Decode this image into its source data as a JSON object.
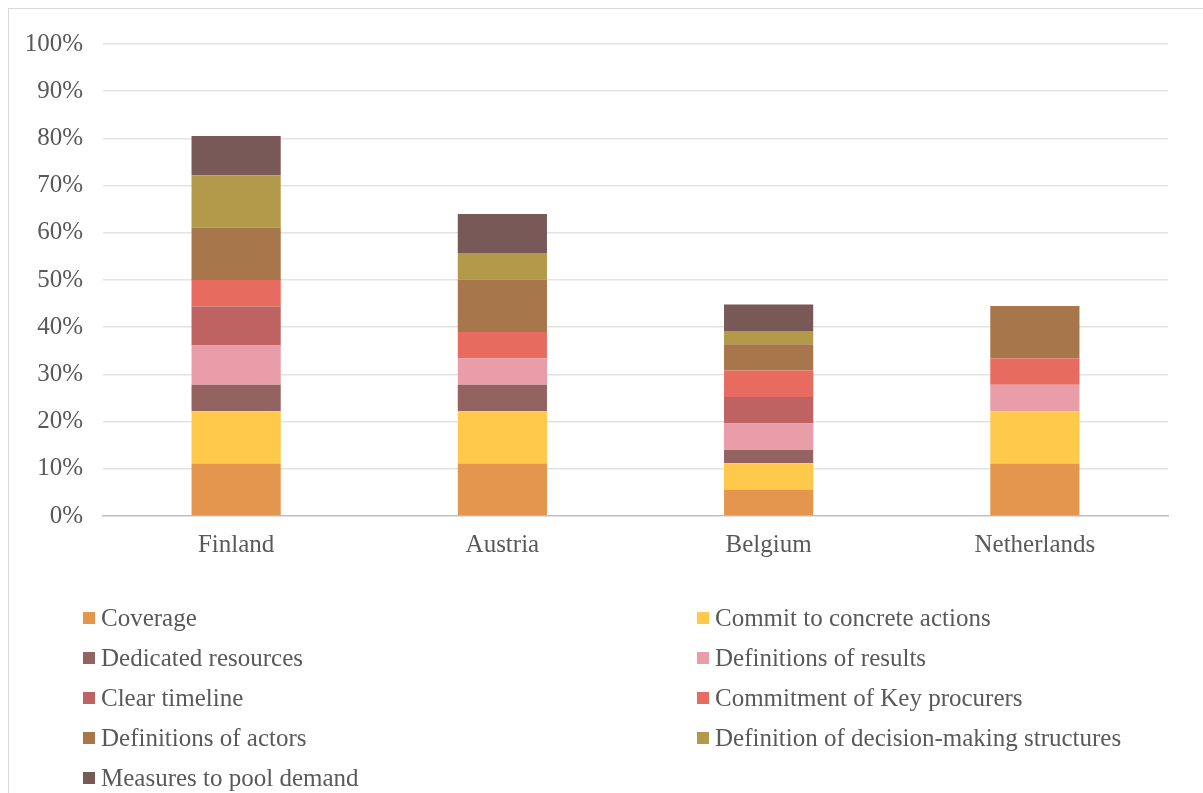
{
  "chart_data": {
    "type": "bar",
    "stacked": true,
    "categories": [
      "Finland",
      "Austria",
      "Belgium",
      "Netherlands"
    ],
    "series": [
      {
        "name": "Coverage",
        "color": "#e4964e",
        "values": [
          11.1,
          11.1,
          5.6,
          11.1
        ]
      },
      {
        "name": "Commit to concrete actions",
        "color": "#ffca4b",
        "values": [
          11.1,
          11.1,
          5.6,
          11.1
        ]
      },
      {
        "name": "Dedicated resources",
        "color": "#936362",
        "values": [
          5.6,
          5.6,
          2.8,
          0
        ]
      },
      {
        "name": "Definitions of results",
        "color": "#e99da8",
        "values": [
          8.3,
          5.6,
          5.6,
          5.6
        ]
      },
      {
        "name": "Clear timeline",
        "color": "#bf6262",
        "values": [
          8.3,
          0,
          5.6,
          0
        ]
      },
      {
        "name": "Commitment of Key procurers",
        "color": "#e86b5f",
        "values": [
          5.6,
          5.6,
          5.6,
          5.6
        ]
      },
      {
        "name": "Definitions of actors",
        "color": "#a7774b",
        "values": [
          11.1,
          11.1,
          5.6,
          11.1
        ]
      },
      {
        "name": "Definition of decision-making structures",
        "color": "#b39a4a",
        "values": [
          11.1,
          5.6,
          2.8,
          0
        ]
      },
      {
        "name": "Measures to pool demand",
        "color": "#795858",
        "values": [
          8.3,
          8.3,
          5.6,
          0
        ]
      }
    ],
    "ylim": [
      0,
      100
    ],
    "yticks": [
      {
        "value": 0,
        "label": "0%"
      },
      {
        "value": 10,
        "label": "10%"
      },
      {
        "value": 20,
        "label": "20%"
      },
      {
        "value": 30,
        "label": "30%"
      },
      {
        "value": 40,
        "label": "40%"
      },
      {
        "value": 50,
        "label": "50%"
      },
      {
        "value": 60,
        "label": "60%"
      },
      {
        "value": 70,
        "label": "70%"
      },
      {
        "value": 80,
        "label": "80%"
      },
      {
        "value": 90,
        "label": "90%"
      },
      {
        "value": 100,
        "label": "100%"
      }
    ],
    "grid": "y",
    "legend": "bottom"
  }
}
